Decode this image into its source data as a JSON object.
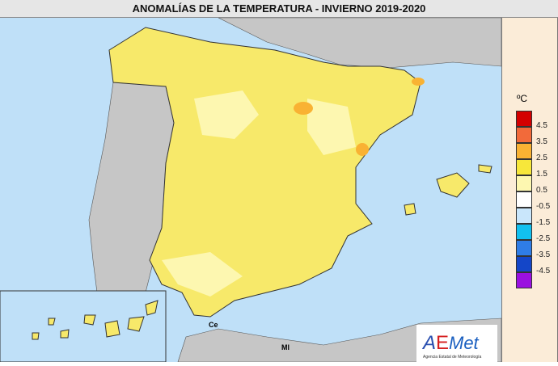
{
  "title": "ANOMALÍAS DE LA TEMPERATURA - INVIERNO 2019-2020",
  "legend": {
    "unit": "ºC",
    "colors": [
      "#d40000",
      "#f26a3a",
      "#f9b233",
      "#f7e73a",
      "#fdf7b0",
      "#ffffff",
      "#c9e6fb",
      "#12c0ef",
      "#2f7de6",
      "#1446c8",
      "#9a10e0"
    ],
    "labels": [
      "4.5",
      "3.5",
      "2.5",
      "1.5",
      "0.5",
      "-0.5",
      "-1.5",
      "-2.5",
      "-3.5",
      "-4.5"
    ]
  },
  "map_labels": {
    "ceuta": "Ce",
    "melilla": "Ml"
  },
  "logo": {
    "name": "AEMet",
    "subtitle": "Agencia Estatal de Meteorología"
  },
  "colors": {
    "sea": "#bfe0f8",
    "land_other": "#c6c6c6",
    "anomaly_main": "#f7e96a",
    "anomaly_light": "#fdf7b0",
    "anomaly_hot": "#f9b233"
  }
}
